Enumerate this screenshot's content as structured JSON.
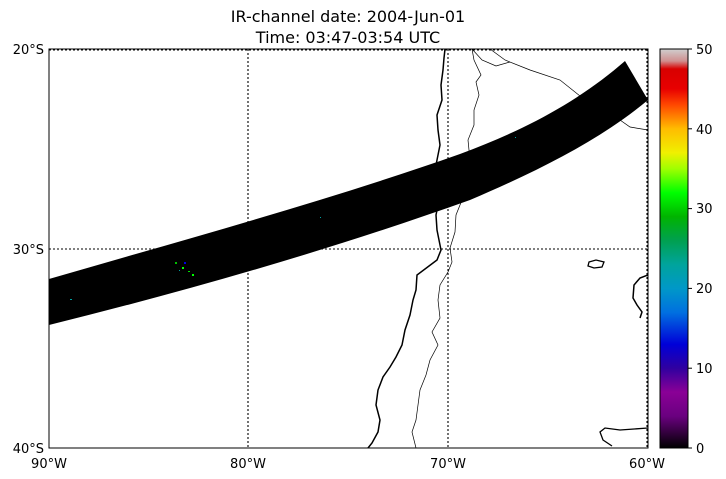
{
  "title_line1": "IR-channel date: 2004-Jun-01",
  "title_line2": "Time: 03:47-03:54 UTC",
  "map": {
    "lon_range": [
      -90,
      -60
    ],
    "lat_range": [
      -40,
      -20
    ],
    "lat_labels": [
      "20°S",
      "30°S",
      "40°S"
    ],
    "lon_labels": [
      "90°W",
      "80°W",
      "70°W",
      "60°W"
    ],
    "gridlines": "dotted",
    "swath_color": "#000000"
  },
  "colorbar": {
    "ticks": [
      "0",
      "10",
      "20",
      "30",
      "40",
      "50"
    ],
    "range": [
      0,
      50
    ],
    "colors": [
      "#000000",
      "#8a0096",
      "#0000c8",
      "#0090d0",
      "#00a090",
      "#00a000",
      "#00ff00",
      "#e0ff00",
      "#ffb000",
      "#ff0000",
      "#d00000",
      "#c8c8c8"
    ]
  }
}
